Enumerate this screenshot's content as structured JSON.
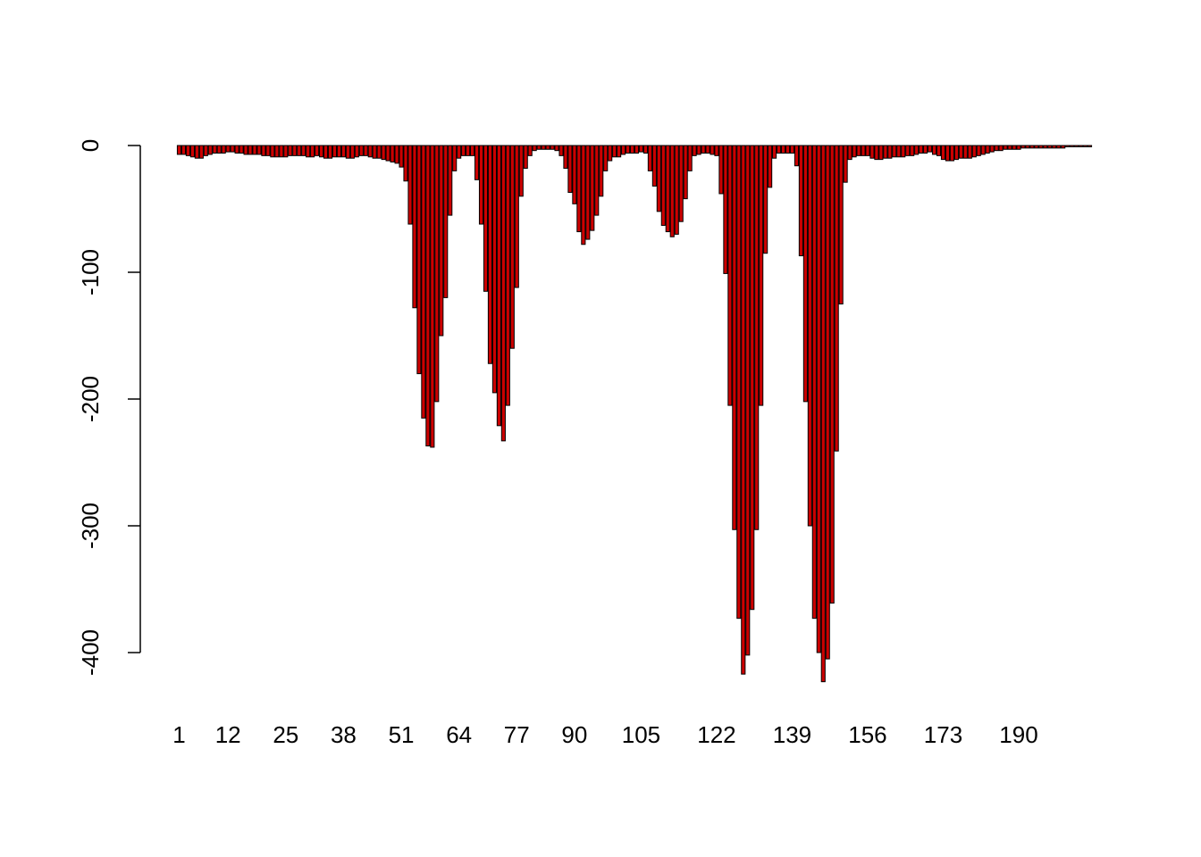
{
  "chart_data": {
    "type": "bar",
    "title": "",
    "xlabel": "",
    "ylabel": "",
    "ylim": [
      -420,
      0
    ],
    "y_ticks": [
      0,
      -100,
      -200,
      -300,
      -400
    ],
    "y_tick_labels": [
      "0",
      "-100",
      "-200",
      "-300",
      "-400"
    ],
    "x_tick_indices": [
      1,
      12,
      25,
      38,
      51,
      64,
      77,
      90,
      105,
      122,
      139,
      156,
      173,
      190
    ],
    "x_tick_labels": [
      "1",
      "12",
      "25",
      "38",
      "51",
      "64",
      "77",
      "90",
      "105",
      "122",
      "139",
      "156",
      "173",
      "190"
    ],
    "bar_fill": "#cc0000",
    "bar_stroke": "#000000",
    "categories": [
      "1",
      "2",
      "3",
      "4",
      "5",
      "6",
      "7",
      "8",
      "9",
      "10",
      "11",
      "12",
      "13",
      "14",
      "15",
      "16",
      "17",
      "18",
      "19",
      "20",
      "21",
      "22",
      "23",
      "24",
      "25",
      "26",
      "27",
      "28",
      "29",
      "30",
      "31",
      "32",
      "33",
      "34",
      "35",
      "36",
      "37",
      "38",
      "39",
      "40",
      "41",
      "42",
      "43",
      "44",
      "45",
      "46",
      "47",
      "48",
      "49",
      "50",
      "51",
      "52",
      "53",
      "54",
      "55",
      "56",
      "57",
      "58",
      "59",
      "60",
      "61",
      "62",
      "63",
      "64",
      "65",
      "66",
      "67",
      "68",
      "69",
      "70",
      "71",
      "72",
      "73",
      "74",
      "75",
      "76",
      "77",
      "78",
      "79",
      "80",
      "81",
      "82",
      "83",
      "84",
      "85",
      "86",
      "87",
      "88",
      "89",
      "90",
      "91",
      "92",
      "93",
      "94",
      "95",
      "96",
      "97",
      "98",
      "99",
      "100",
      "101",
      "102",
      "103",
      "104",
      "105",
      "106",
      "107",
      "108",
      "109",
      "110",
      "111",
      "112",
      "113",
      "114",
      "115",
      "116",
      "117",
      "118",
      "119",
      "120",
      "121",
      "122",
      "123",
      "124",
      "125",
      "126",
      "127",
      "128",
      "129",
      "130",
      "131",
      "132",
      "133",
      "134",
      "135",
      "136",
      "137",
      "138",
      "139",
      "140",
      "141",
      "142",
      "143",
      "144",
      "145",
      "146",
      "147",
      "148",
      "149",
      "150",
      "151",
      "152",
      "153",
      "154",
      "155",
      "156",
      "157",
      "158",
      "159",
      "160",
      "161",
      "162",
      "163",
      "164",
      "165",
      "166",
      "167",
      "168",
      "169",
      "170",
      "171",
      "172",
      "173",
      "174",
      "175",
      "176",
      "177",
      "178",
      "179",
      "180",
      "181",
      "182",
      "183",
      "184",
      "185",
      "186",
      "187",
      "188",
      "189",
      "190",
      "191",
      "192",
      "193",
      "194",
      "195",
      "196",
      "197",
      "198",
      "199",
      "200",
      "201",
      "202",
      "203",
      "204",
      "205",
      "206"
    ],
    "values": [
      -7,
      -7,
      -8,
      -9,
      -10,
      -10,
      -8,
      -7,
      -6,
      -6,
      -6,
      -5,
      -5,
      -6,
      -6,
      -7,
      -7,
      -7,
      -7,
      -8,
      -8,
      -9,
      -9,
      -9,
      -9,
      -8,
      -8,
      -8,
      -8,
      -9,
      -9,
      -8,
      -9,
      -10,
      -10,
      -9,
      -9,
      -9,
      -10,
      -10,
      -9,
      -8,
      -8,
      -9,
      -10,
      -10,
      -11,
      -12,
      -13,
      -14,
      -17,
      -28,
      -62,
      -128,
      -180,
      -215,
      -237,
      -238,
      -202,
      -150,
      -120,
      -55,
      -20,
      -10,
      -8,
      -8,
      -8,
      -27,
      -62,
      -115,
      -172,
      -195,
      -221,
      -233,
      -205,
      -160,
      -112,
      -40,
      -18,
      -8,
      -4,
      -3,
      -3,
      -3,
      -3,
      -4,
      -8,
      -18,
      -37,
      -46,
      -68,
      -78,
      -74,
      -67,
      -55,
      -40,
      -20,
      -12,
      -9,
      -9,
      -7,
      -6,
      -6,
      -6,
      -5,
      -6,
      -20,
      -32,
      -52,
      -63,
      -68,
      -72,
      -70,
      -60,
      -42,
      -20,
      -8,
      -7,
      -6,
      -6,
      -7,
      -8,
      -38,
      -101,
      -205,
      -303,
      -373,
      -417,
      -402,
      -366,
      -303,
      -205,
      -85,
      -33,
      -10,
      -6,
      -6,
      -6,
      -6,
      -16,
      -87,
      -202,
      -300,
      -373,
      -400,
      -423,
      -405,
      -361,
      -241,
      -125,
      -29,
      -11,
      -9,
      -8,
      -8,
      -8,
      -10,
      -11,
      -11,
      -10,
      -10,
      -9,
      -9,
      -9,
      -8,
      -8,
      -7,
      -6,
      -6,
      -5,
      -7,
      -8,
      -11,
      -12,
      -12,
      -11,
      -10,
      -10,
      -10,
      -9,
      -8,
      -7,
      -6,
      -5,
      -4,
      -4,
      -3,
      -3,
      -3,
      -3,
      -2,
      -2,
      -2,
      -2,
      -2,
      -2,
      -2,
      -2,
      -2,
      -2,
      -1,
      -1,
      -1,
      -1,
      -1,
      -1
    ]
  }
}
